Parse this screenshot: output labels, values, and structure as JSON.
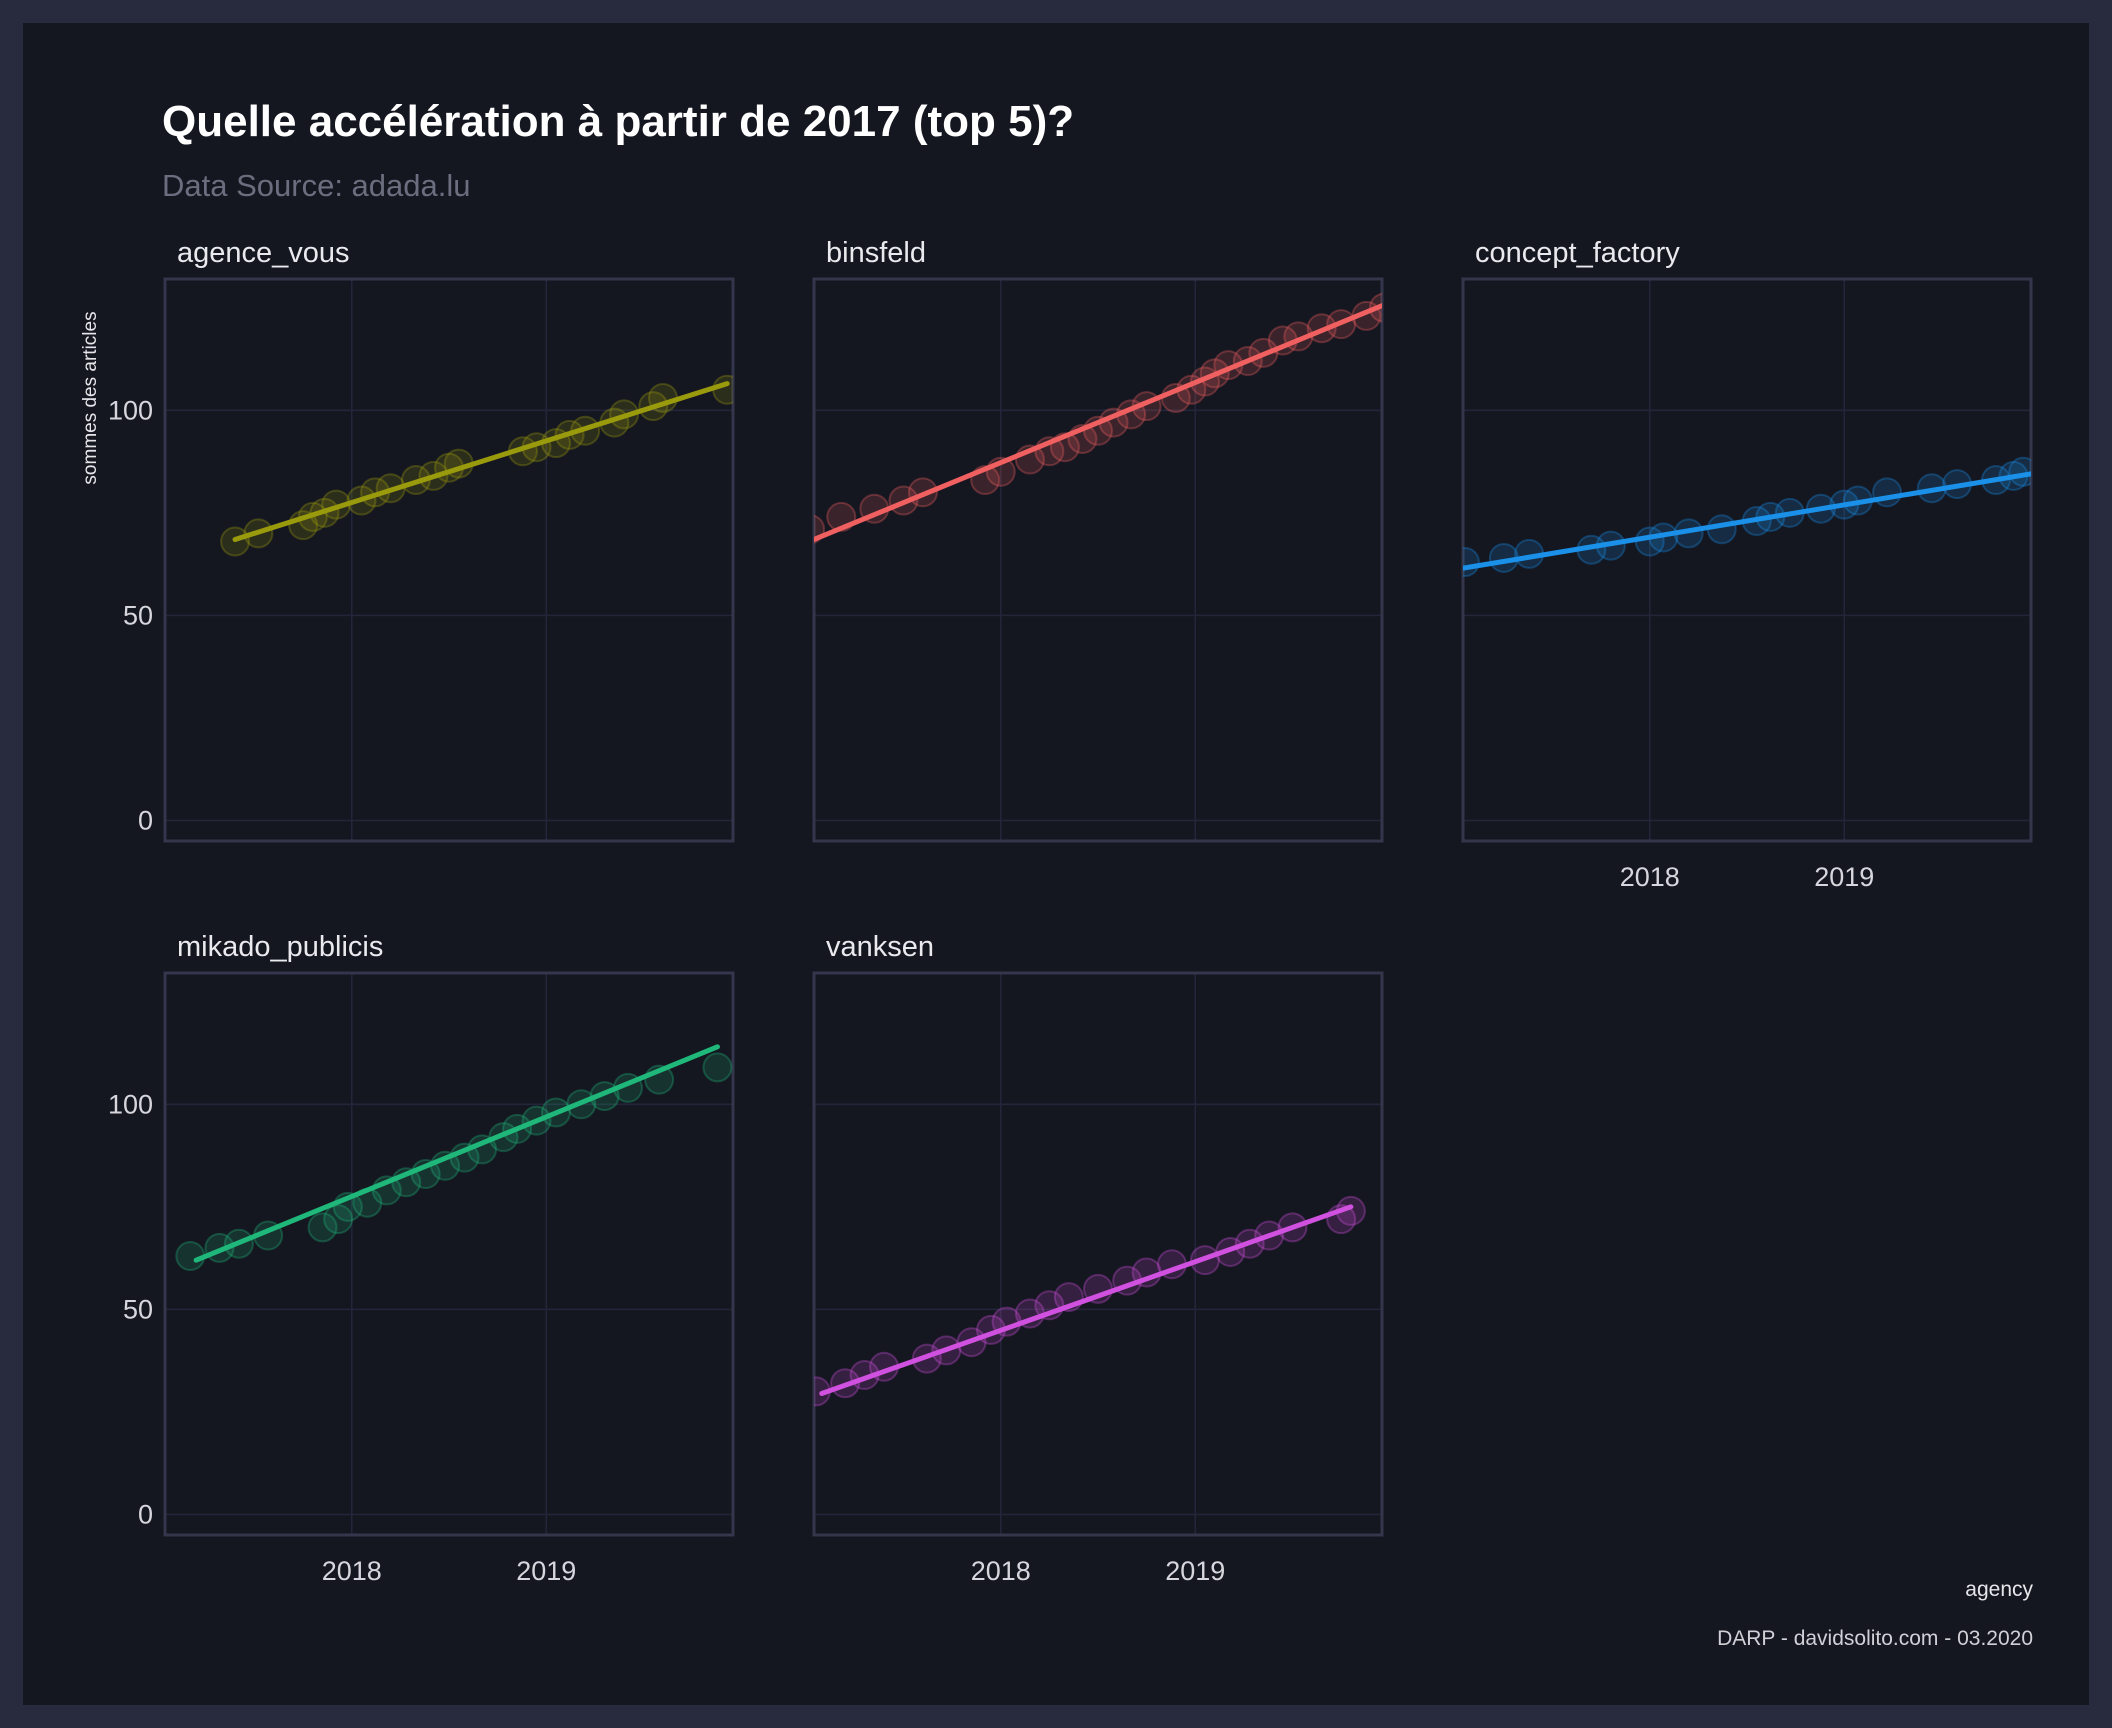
{
  "chart_data": {
    "type": "scatter",
    "title": "Quelle accélération à partir de 2017 (top 5)?",
    "subtitle": "Data Source: adada.lu",
    "ylabel": "sommes des articles",
    "legend_title": "agency",
    "caption": "DARP - davidsolito.com - 03.2020",
    "x_ticks": [
      "2018",
      "2019"
    ],
    "y_ticks": [
      0,
      50,
      100
    ],
    "ylim": [
      -5,
      132
    ],
    "xlim": [
      2017.04,
      2019.96
    ],
    "trend": "linear",
    "panels": [
      {
        "name": "agence_vous",
        "color": "#9a9a0d",
        "show_x_ticks": false,
        "points": [
          [
            2017.4,
            68
          ],
          [
            2017.52,
            70
          ],
          [
            2017.75,
            72
          ],
          [
            2017.8,
            74
          ],
          [
            2017.86,
            75
          ],
          [
            2017.92,
            77
          ],
          [
            2018.05,
            78
          ],
          [
            2018.12,
            80
          ],
          [
            2018.2,
            81
          ],
          [
            2018.33,
            83
          ],
          [
            2018.42,
            84
          ],
          [
            2018.5,
            86
          ],
          [
            2018.55,
            87
          ],
          [
            2018.88,
            90
          ],
          [
            2018.95,
            91
          ],
          [
            2019.05,
            92
          ],
          [
            2019.12,
            94
          ],
          [
            2019.2,
            95
          ],
          [
            2019.35,
            97
          ],
          [
            2019.4,
            99
          ],
          [
            2019.55,
            101
          ],
          [
            2019.6,
            103
          ],
          [
            2019.93,
            105
          ]
        ],
        "fit": [
          [
            2017.4,
            68.5
          ],
          [
            2019.93,
            106.5
          ]
        ]
      },
      {
        "name": "binsfeld",
        "color": "#f06060",
        "show_x_ticks": false,
        "points": [
          [
            2017.02,
            71
          ],
          [
            2017.18,
            74
          ],
          [
            2017.35,
            76
          ],
          [
            2017.5,
            78
          ],
          [
            2017.6,
            80
          ],
          [
            2017.92,
            83
          ],
          [
            2018.0,
            85
          ],
          [
            2018.15,
            88
          ],
          [
            2018.25,
            90
          ],
          [
            2018.33,
            91
          ],
          [
            2018.42,
            93
          ],
          [
            2018.5,
            95
          ],
          [
            2018.58,
            97
          ],
          [
            2018.67,
            99
          ],
          [
            2018.75,
            101
          ],
          [
            2018.9,
            103
          ],
          [
            2018.98,
            105
          ],
          [
            2019.05,
            107
          ],
          [
            2019.1,
            109
          ],
          [
            2019.17,
            111
          ],
          [
            2019.27,
            112
          ],
          [
            2019.35,
            114
          ],
          [
            2019.45,
            117
          ],
          [
            2019.53,
            118
          ],
          [
            2019.65,
            120
          ],
          [
            2019.75,
            121
          ],
          [
            2019.88,
            123
          ],
          [
            2019.97,
            125
          ]
        ],
        "fit": [
          [
            2017.04,
            68.5
          ],
          [
            2019.96,
            125.5
          ]
        ]
      },
      {
        "name": "concept_factory",
        "color": "#1a90e8",
        "show_x_ticks": true,
        "points": [
          [
            2017.05,
            63
          ],
          [
            2017.25,
            64
          ],
          [
            2017.38,
            65
          ],
          [
            2017.7,
            66
          ],
          [
            2017.8,
            67
          ],
          [
            2018.0,
            68
          ],
          [
            2018.07,
            69
          ],
          [
            2018.2,
            70
          ],
          [
            2018.37,
            71
          ],
          [
            2018.55,
            73
          ],
          [
            2018.62,
            74
          ],
          [
            2018.72,
            75
          ],
          [
            2018.88,
            76
          ],
          [
            2019.0,
            77
          ],
          [
            2019.07,
            78
          ],
          [
            2019.22,
            80
          ],
          [
            2019.45,
            81
          ],
          [
            2019.58,
            82
          ],
          [
            2019.78,
            83
          ],
          [
            2019.87,
            84
          ],
          [
            2019.92,
            85
          ]
        ],
        "fit": [
          [
            2017.04,
            61.5
          ],
          [
            2019.96,
            84.5
          ]
        ]
      },
      {
        "name": "mikado_publicis",
        "color": "#1fb87a",
        "show_x_ticks": true,
        "points": [
          [
            2017.17,
            63
          ],
          [
            2017.32,
            65
          ],
          [
            2017.42,
            66
          ],
          [
            2017.57,
            68
          ],
          [
            2017.85,
            70
          ],
          [
            2017.93,
            72
          ],
          [
            2017.98,
            75
          ],
          [
            2018.08,
            76
          ],
          [
            2018.18,
            79
          ],
          [
            2018.28,
            81
          ],
          [
            2018.38,
            83
          ],
          [
            2018.48,
            85
          ],
          [
            2018.58,
            87
          ],
          [
            2018.67,
            89
          ],
          [
            2018.78,
            92
          ],
          [
            2018.85,
            94
          ],
          [
            2018.95,
            96
          ],
          [
            2019.05,
            98
          ],
          [
            2019.18,
            100
          ],
          [
            2019.3,
            102
          ],
          [
            2019.42,
            104
          ],
          [
            2019.58,
            106
          ],
          [
            2019.88,
            109
          ]
        ],
        "fit": [
          [
            2017.2,
            62
          ],
          [
            2019.88,
            114
          ]
        ]
      },
      {
        "name": "vanksen",
        "color": "#d050e0",
        "show_x_ticks": true,
        "points": [
          [
            2017.05,
            30
          ],
          [
            2017.2,
            32
          ],
          [
            2017.3,
            34
          ],
          [
            2017.4,
            36
          ],
          [
            2017.62,
            38
          ],
          [
            2017.72,
            40
          ],
          [
            2017.85,
            42
          ],
          [
            2017.95,
            45
          ],
          [
            2018.03,
            47
          ],
          [
            2018.15,
            49
          ],
          [
            2018.25,
            51
          ],
          [
            2018.35,
            53
          ],
          [
            2018.5,
            55
          ],
          [
            2018.65,
            57
          ],
          [
            2018.75,
            59
          ],
          [
            2018.88,
            61
          ],
          [
            2019.05,
            62
          ],
          [
            2019.18,
            64
          ],
          [
            2019.28,
            66
          ],
          [
            2019.38,
            68
          ],
          [
            2019.5,
            70
          ],
          [
            2019.75,
            72
          ],
          [
            2019.8,
            74
          ]
        ],
        "fit": [
          [
            2017.08,
            29.5
          ],
          [
            2019.8,
            75
          ]
        ]
      }
    ]
  }
}
